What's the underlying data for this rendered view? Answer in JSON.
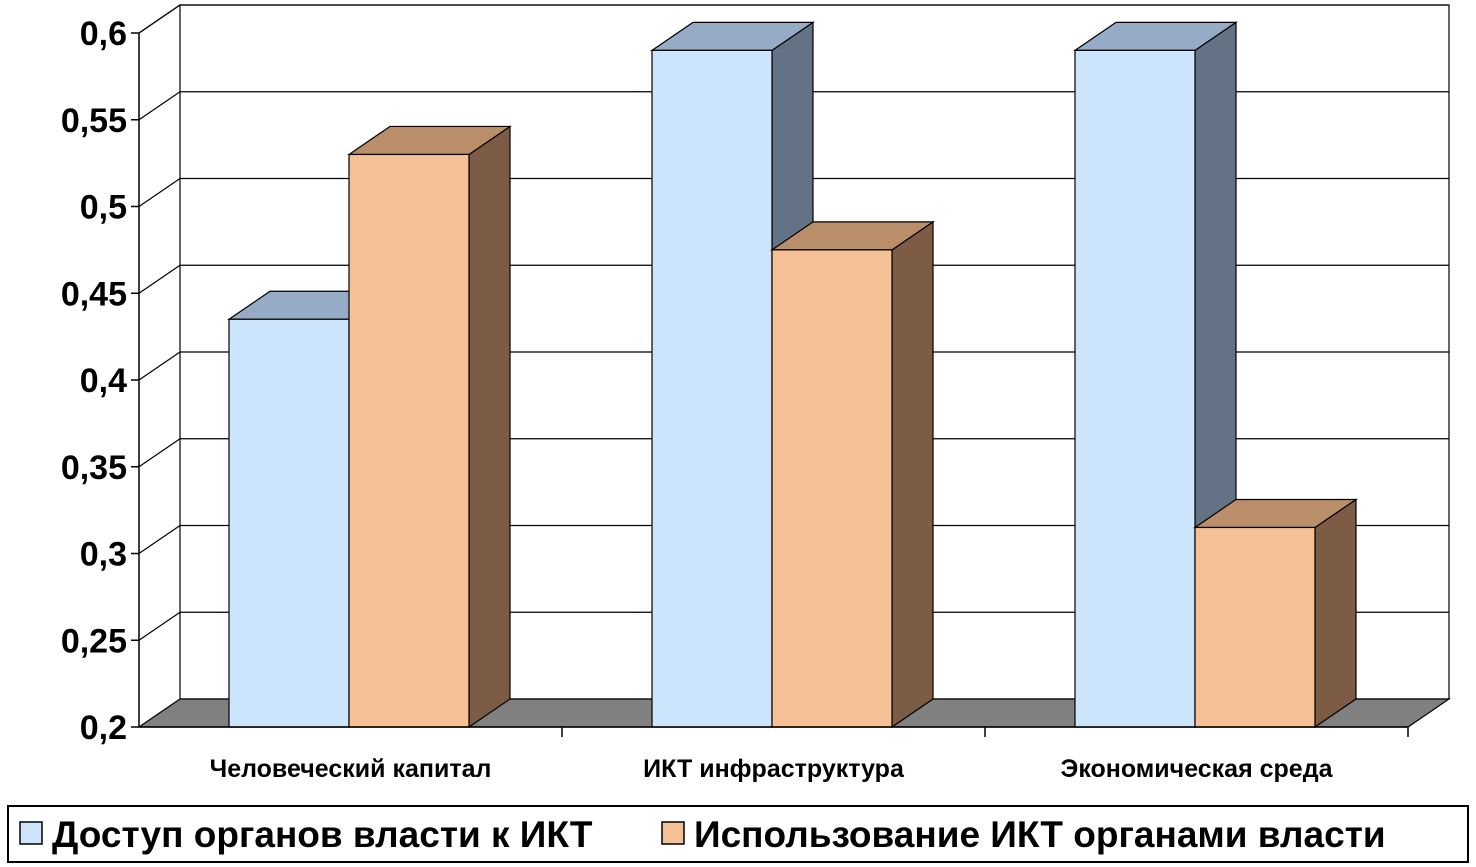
{
  "chart_data": {
    "type": "bar",
    "three_d": true,
    "categories": [
      "Человеческий капитал",
      "ИКТ инфраструктура",
      "Экономическая среда"
    ],
    "series": [
      {
        "name": "Доступ органов власти к ИКТ",
        "values": [
          0.435,
          0.59,
          0.59
        ]
      },
      {
        "name": "Использование ИКТ органами власти",
        "values": [
          0.53,
          0.475,
          0.315
        ]
      }
    ],
    "y_ticks": [
      "0,2",
      "0,25",
      "0,3",
      "0,35",
      "0,4",
      "0,45",
      "0,5",
      "0,55",
      "0,6"
    ],
    "ylim": [
      0.2,
      0.6
    ],
    "grid": true,
    "legend_position": "bottom",
    "colors": {
      "series_front": [
        "#cce4fc",
        "#f6c096"
      ],
      "series_top": [
        "#96abc5",
        "#bb8e6a"
      ],
      "series_side": [
        "#637285",
        "#7c5c44"
      ],
      "floor": "#808080",
      "outline": "#000000"
    }
  }
}
